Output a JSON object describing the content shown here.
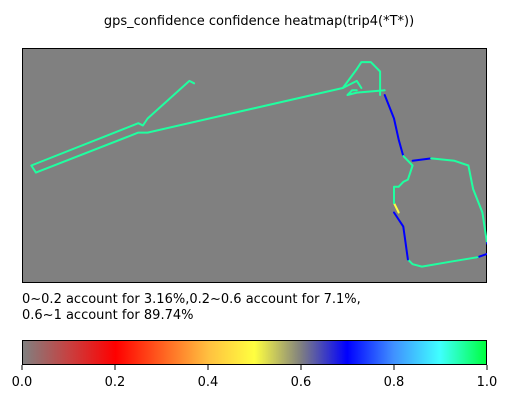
{
  "chart_data": {
    "type": "heatmap",
    "title": "gps_confidence confidence heatmap(trip4(*T*))",
    "xlabel": "",
    "ylabel": "",
    "summary_lines": [
      "0~0.2 account for 3.16%,0.2~0.6 account for 7.1%,",
      "0.6~1 account for 89.74%"
    ],
    "bins": [
      {
        "range": "0~0.2",
        "percent": 3.16
      },
      {
        "range": "0.2~0.6",
        "percent": 7.1
      },
      {
        "range": "0.6~1",
        "percent": 89.74
      }
    ],
    "colorbar": {
      "min": 0.0,
      "max": 1.0,
      "ticks": [
        "0.0",
        "0.2",
        "0.4",
        "0.6",
        "0.8",
        "1.0"
      ],
      "stops": [
        {
          "value": 0.0,
          "color": "#808080"
        },
        {
          "value": 0.1,
          "color": "#c84040"
        },
        {
          "value": 0.2,
          "color": "#ff0000"
        },
        {
          "value": 0.3,
          "color": "#ff6020"
        },
        {
          "value": 0.4,
          "color": "#ffc040"
        },
        {
          "value": 0.5,
          "color": "#ffff40"
        },
        {
          "value": 0.6,
          "color": "#808080"
        },
        {
          "value": 0.7,
          "color": "#0000ff"
        },
        {
          "value": 0.8,
          "color": "#4090ff"
        },
        {
          "value": 0.9,
          "color": "#40ffff"
        },
        {
          "value": 1.0,
          "color": "#00ff40"
        }
      ]
    },
    "track_segments": [
      {
        "confidence": 0.95,
        "points": [
          [
            0.37,
            0.15
          ],
          [
            0.36,
            0.14
          ],
          [
            0.27,
            0.3
          ],
          [
            0.26,
            0.33
          ],
          [
            0.25,
            0.32
          ],
          [
            0.02,
            0.5
          ],
          [
            0.03,
            0.53
          ],
          [
            0.25,
            0.36
          ],
          [
            0.27,
            0.36
          ],
          [
            0.69,
            0.17
          ],
          [
            0.72,
            0.09
          ],
          [
            0.73,
            0.06
          ],
          [
            0.75,
            0.06
          ],
          [
            0.77,
            0.1
          ],
          [
            0.77,
            0.2
          ]
        ]
      },
      {
        "confidence": 0.95,
        "points": [
          [
            0.73,
            0.17
          ],
          [
            0.72,
            0.14
          ],
          [
            0.69,
            0.17
          ]
        ]
      },
      {
        "confidence": 0.95,
        "points": [
          [
            0.72,
            0.18
          ],
          [
            0.71,
            0.18
          ],
          [
            0.7,
            0.2
          ],
          [
            0.72,
            0.19
          ],
          [
            0.78,
            0.18
          ]
        ]
      },
      {
        "confidence": 0.7,
        "points": [
          [
            0.78,
            0.2
          ],
          [
            0.8,
            0.3
          ],
          [
            0.81,
            0.39
          ],
          [
            0.82,
            0.46
          ]
        ]
      },
      {
        "confidence": 0.95,
        "points": [
          [
            0.82,
            0.46
          ],
          [
            0.84,
            0.5
          ],
          [
            0.83,
            0.56
          ],
          [
            0.82,
            0.57
          ],
          [
            0.81,
            0.59
          ]
        ]
      },
      {
        "confidence": 0.7,
        "points": [
          [
            0.84,
            0.48
          ],
          [
            0.88,
            0.47
          ]
        ]
      },
      {
        "confidence": 0.95,
        "points": [
          [
            0.88,
            0.47
          ],
          [
            0.93,
            0.48
          ],
          [
            0.96,
            0.5
          ],
          [
            0.97,
            0.6
          ],
          [
            0.99,
            0.7
          ],
          [
            1.0,
            0.83
          ]
        ]
      },
      {
        "confidence": 0.7,
        "points": [
          [
            1.0,
            0.83
          ],
          [
            1.01,
            0.87
          ],
          [
            0.98,
            0.89
          ]
        ]
      },
      {
        "confidence": 0.95,
        "points": [
          [
            0.98,
            0.89
          ],
          [
            0.92,
            0.91
          ],
          [
            0.86,
            0.93
          ],
          [
            0.84,
            0.92
          ],
          [
            0.83,
            0.9
          ]
        ]
      },
      {
        "confidence": 0.7,
        "points": [
          [
            0.83,
            0.9
          ],
          [
            0.82,
            0.76
          ],
          [
            0.8,
            0.7
          ]
        ]
      },
      {
        "confidence": 0.5,
        "points": [
          [
            0.8,
            0.66
          ],
          [
            0.81,
            0.7
          ]
        ]
      },
      {
        "confidence": 0.95,
        "points": [
          [
            0.8,
            0.66
          ],
          [
            0.8,
            0.59
          ],
          [
            0.81,
            0.59
          ]
        ]
      }
    ],
    "colors": {
      "plot_background": "#808080",
      "frame": "#000000"
    }
  }
}
